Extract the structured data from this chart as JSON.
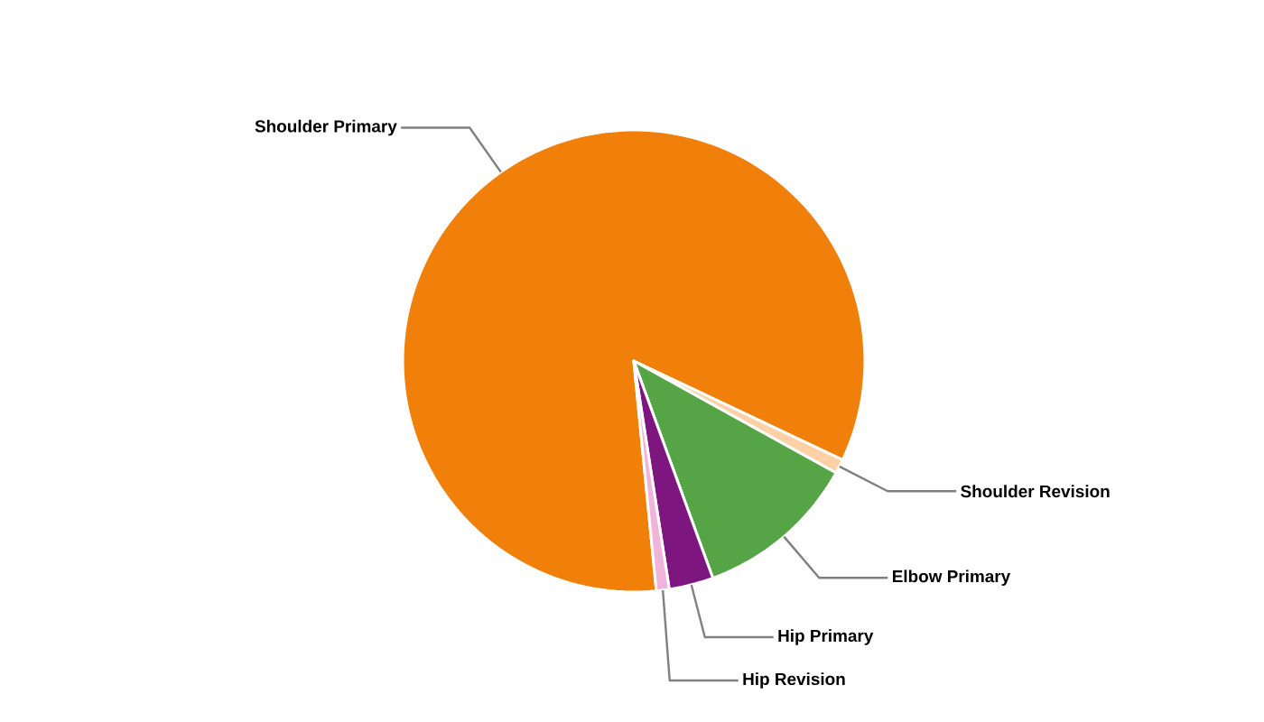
{
  "chart_data": {
    "type": "pie",
    "categories": [
      "Shoulder Primary",
      "Shoulder Revision",
      "Elbow Primary",
      "Hip Primary",
      "Hip Revision"
    ],
    "values": [
      83.6,
      1.0,
      11.4,
      3.1,
      0.9
    ],
    "colors": [
      "#f0800a",
      "#fdd0a6",
      "#55a546",
      "#7e1680",
      "#f2b3db"
    ]
  }
}
